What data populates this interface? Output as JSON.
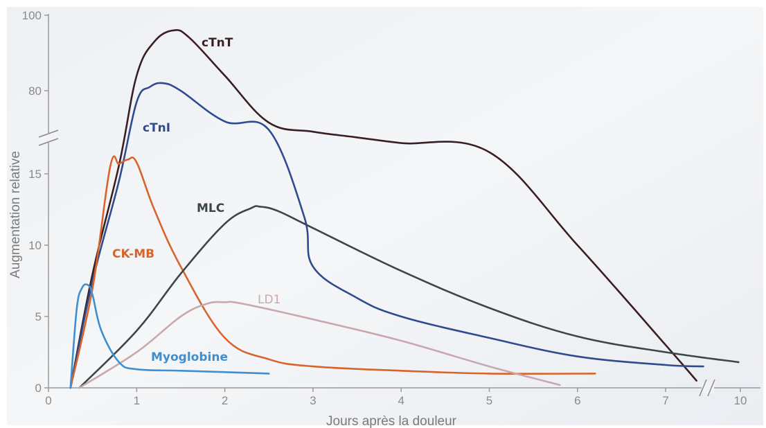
{
  "chart_data": {
    "type": "line",
    "title": "",
    "xlabel": "Jours après la douleur",
    "ylabel": "Augmentation relative",
    "x_ticks": [
      "0",
      "1",
      "2",
      "3",
      "4",
      "5",
      "6",
      "7",
      "10"
    ],
    "y_ticks": [
      "0",
      "5",
      "10",
      "15",
      "80",
      "100"
    ],
    "y_axis_break": true,
    "x_axis_break": true,
    "grid": false,
    "legend": "inline labels",
    "series": [
      {
        "name": "cTnT",
        "color": "#3a1f22",
        "x": [
          0.25,
          0.5,
          0.8,
          1.0,
          1.2,
          1.42,
          1.6,
          2.0,
          2.5,
          3.0,
          3.5,
          4.0,
          5.0,
          6.0,
          7.0,
          7.35
        ],
        "y": [
          0,
          8,
          15.6,
          84,
          93,
          96,
          94,
          84,
          69,
          53,
          43,
          33,
          17,
          10,
          3.0,
          0.5
        ]
      },
      {
        "name": "cTnI",
        "color": "#2f4a8f",
        "x": [
          0.25,
          0.5,
          0.8,
          1.0,
          1.15,
          1.3,
          1.5,
          2.0,
          2.5,
          2.9,
          3.0,
          3.5,
          4.0,
          5.0,
          6.0,
          7.0,
          7.6
        ],
        "y": [
          0,
          7.5,
          14.5,
          77,
          81,
          82,
          80,
          71,
          56,
          12,
          8.5,
          6.3,
          5.0,
          3.5,
          2.2,
          1.6,
          1.5
        ]
      },
      {
        "name": "CK-MB",
        "color": "#d8642c",
        "x": [
          0.25,
          0.5,
          0.7,
          0.8,
          0.9,
          1.0,
          1.2,
          1.5,
          2.0,
          2.5,
          3.0,
          4.0,
          5.0,
          6.2
        ],
        "y": [
          0,
          7,
          15.5,
          15.7,
          16,
          15.8,
          12.5,
          8.5,
          3.5,
          2.0,
          1.5,
          1.2,
          1.0,
          1.0
        ]
      },
      {
        "name": "MLC",
        "color": "#3c4646",
        "x": [
          0.35,
          1.0,
          1.5,
          2.0,
          2.3,
          2.4,
          2.6,
          3.0,
          4.0,
          5.0,
          6.0,
          7.0,
          10.5
        ],
        "y": [
          0,
          4,
          8,
          11.5,
          12.6,
          12.7,
          12.4,
          11.2,
          8.2,
          5.6,
          3.6,
          2.5,
          1.8
        ]
      },
      {
        "name": "LD1",
        "color": "#c8a8ac",
        "x": [
          0.35,
          1.0,
          1.5,
          1.8,
          2.0,
          2.2,
          3.0,
          4.0,
          5.0,
          5.8
        ],
        "y": [
          0,
          2.5,
          5.0,
          5.9,
          6.0,
          5.9,
          4.8,
          3.3,
          1.5,
          0.2
        ]
      },
      {
        "name": "Myoglobine",
        "color": "#3f8fd0",
        "x": [
          0.25,
          0.32,
          0.38,
          0.45,
          0.5,
          0.6,
          0.8,
          1.0,
          1.5,
          2.0,
          2.5
        ],
        "y": [
          0,
          5.5,
          7.0,
          7.2,
          6.5,
          4.0,
          1.8,
          1.3,
          1.2,
          1.1,
          1.0
        ]
      }
    ]
  }
}
